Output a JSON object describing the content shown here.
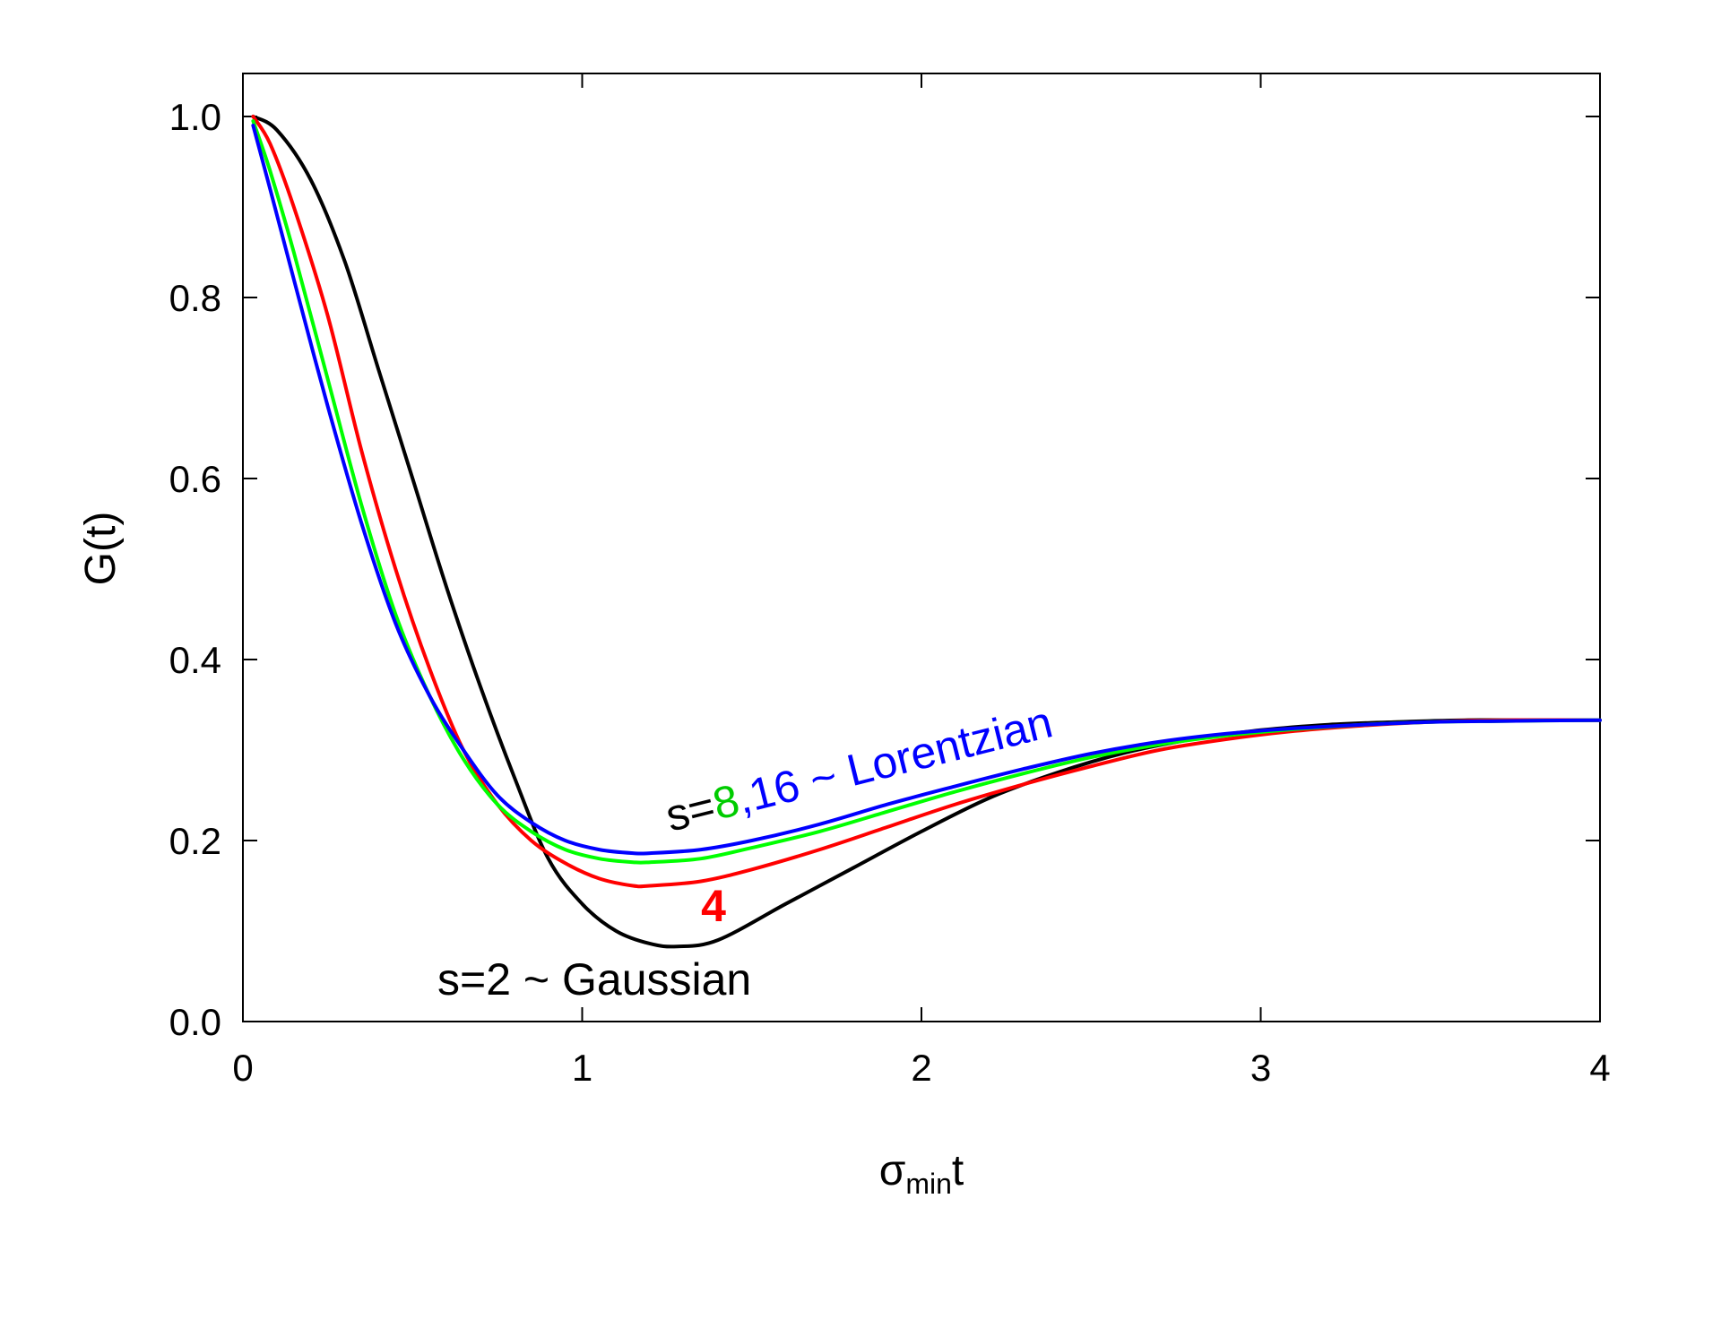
{
  "chart_data": {
    "type": "line",
    "title": "",
    "xlabel": {
      "main": "σ",
      "sub": "min",
      "tail": "t"
    },
    "ylabel": "G(t)",
    "xlim": [
      0,
      4
    ],
    "ylim": [
      0,
      1.05
    ],
    "xticks": [
      0,
      1,
      2,
      3,
      4
    ],
    "xtick_labels": [
      "0",
      "1",
      "2",
      "3",
      "4"
    ],
    "yticks": [
      0,
      0.2,
      0.4,
      0.6,
      0.8,
      1.0
    ],
    "ytick_labels": [
      "0.0",
      "0.2",
      "0.4",
      "0.6",
      "0.8",
      "1.0"
    ],
    "grid": false,
    "legend": "none",
    "series": [
      {
        "color": "#000000",
        "x": [
          0.03,
          0.1,
          0.2,
          0.3,
          0.4,
          0.5,
          0.6,
          0.7,
          0.8,
          0.9,
          1.0,
          1.1,
          1.2,
          1.28,
          1.4,
          1.6,
          1.8,
          2.0,
          2.2,
          2.4,
          2.6,
          2.8,
          3.0,
          3.2,
          3.4,
          3.6,
          3.8,
          4.0
        ],
        "y": [
          1.0,
          0.985,
          0.93,
          0.84,
          0.72,
          0.6,
          0.48,
          0.37,
          0.27,
          0.18,
          0.13,
          0.1,
          0.086,
          0.083,
          0.09,
          0.13,
          0.17,
          0.21,
          0.247,
          0.275,
          0.297,
          0.312,
          0.322,
          0.328,
          0.331,
          0.333,
          0.333,
          0.333
        ]
      },
      {
        "color": "#ff0000",
        "x": [
          0.03,
          0.08,
          0.15,
          0.25,
          0.35,
          0.45,
          0.55,
          0.65,
          0.75,
          0.85,
          0.95,
          1.05,
          1.15,
          1.2,
          1.35,
          1.5,
          1.7,
          1.9,
          2.1,
          2.3,
          2.5,
          2.7,
          2.9,
          3.1,
          3.3,
          3.5,
          3.7,
          4.0
        ],
        "y": [
          1.0,
          0.97,
          0.9,
          0.78,
          0.63,
          0.5,
          0.39,
          0.3,
          0.24,
          0.2,
          0.175,
          0.158,
          0.15,
          0.15,
          0.155,
          0.168,
          0.19,
          0.215,
          0.24,
          0.262,
          0.282,
          0.3,
          0.312,
          0.321,
          0.327,
          0.331,
          0.333,
          0.333
        ]
      },
      {
        "color": "#00ff00",
        "x": [
          0.03,
          0.08,
          0.15,
          0.25,
          0.35,
          0.45,
          0.55,
          0.65,
          0.75,
          0.85,
          0.95,
          1.05,
          1.15,
          1.2,
          1.35,
          1.5,
          1.7,
          1.9,
          2.1,
          2.3,
          2.5,
          2.7,
          2.9,
          3.1,
          3.3,
          3.5,
          3.7,
          4.0
        ],
        "y": [
          0.995,
          0.94,
          0.85,
          0.71,
          0.57,
          0.45,
          0.36,
          0.29,
          0.24,
          0.21,
          0.19,
          0.18,
          0.176,
          0.176,
          0.18,
          0.192,
          0.21,
          0.232,
          0.254,
          0.274,
          0.292,
          0.306,
          0.316,
          0.323,
          0.328,
          0.331,
          0.332,
          0.333
        ]
      },
      {
        "color": "#0000ff",
        "x": [
          0.03,
          0.08,
          0.15,
          0.25,
          0.35,
          0.45,
          0.55,
          0.65,
          0.75,
          0.85,
          0.95,
          1.05,
          1.15,
          1.2,
          1.35,
          1.5,
          1.7,
          1.9,
          2.1,
          2.3,
          2.5,
          2.7,
          2.9,
          3.1,
          3.3,
          3.5,
          3.7,
          4.0
        ],
        "y": [
          0.99,
          0.92,
          0.82,
          0.68,
          0.55,
          0.44,
          0.36,
          0.3,
          0.25,
          0.22,
          0.2,
          0.19,
          0.186,
          0.186,
          0.19,
          0.2,
          0.218,
          0.24,
          0.26,
          0.279,
          0.296,
          0.309,
          0.318,
          0.324,
          0.328,
          0.331,
          0.332,
          0.333
        ]
      }
    ],
    "annotations": {
      "lorentzian": [
        {
          "text": "s=",
          "color": "#000000"
        },
        {
          "text": "8",
          "color": "#00cc00"
        },
        {
          "text": ",16 ~ Lorentzian",
          "color": "#0000ff"
        }
      ],
      "red": {
        "text": "4",
        "color": "#ff0000"
      },
      "gaussian": {
        "text": "s=2 ~ Gaussian",
        "color": "#000000"
      }
    }
  }
}
